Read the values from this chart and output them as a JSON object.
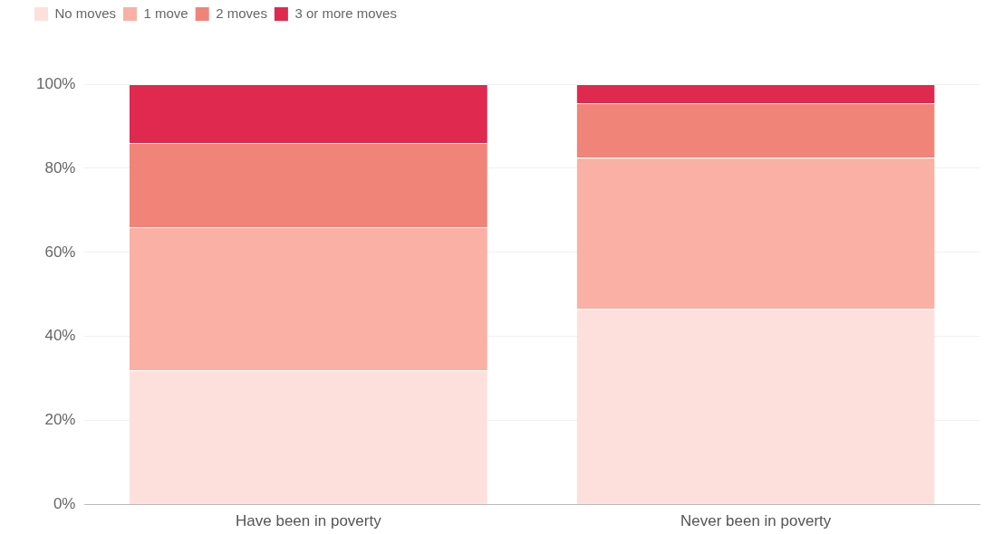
{
  "chart_data": {
    "type": "bar",
    "stacked": true,
    "categories": [
      "Have been in poverty",
      "Never been in poverty"
    ],
    "series": [
      {
        "name": "No moves",
        "color": "#fde0dc",
        "values": [
          32,
          46.5
        ]
      },
      {
        "name": "1 move",
        "color": "#fab0a5",
        "values": [
          34,
          36
        ]
      },
      {
        "name": "2 moves",
        "color": "#f08479",
        "values": [
          20,
          13
        ]
      },
      {
        "name": "3 or more moves",
        "color": "#e0294f",
        "values": [
          14,
          4.5
        ]
      }
    ],
    "ylim": [
      0,
      100
    ],
    "yticks": [
      {
        "value": 0,
        "label": "0%"
      },
      {
        "value": 20,
        "label": "20%"
      },
      {
        "value": 40,
        "label": "40%"
      },
      {
        "value": 60,
        "label": "60%"
      },
      {
        "value": 80,
        "label": "80%"
      },
      {
        "value": 100,
        "label": "100%"
      }
    ],
    "grid": "y",
    "legend": "top left"
  }
}
